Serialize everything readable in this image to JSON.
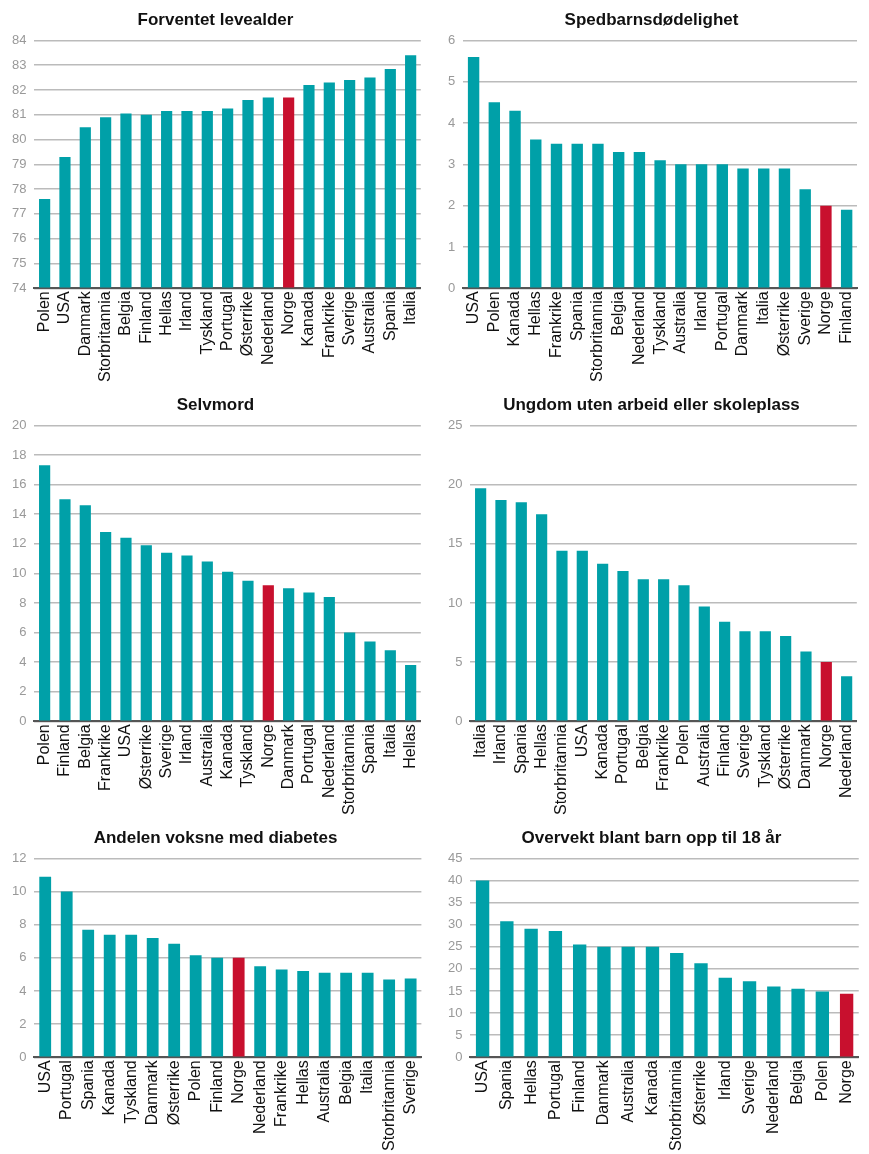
{
  "chart_data": [
    {
      "type": "bar",
      "title": "Forventet levealder",
      "categories": [
        "Polen",
        "USA",
        "Danmark",
        "Storbritannia",
        "Belgia",
        "Finland",
        "Hellas",
        "Irland",
        "Tyskland",
        "Portugal",
        "Østerrike",
        "Nederland",
        "Norge",
        "Kanada",
        "Frankrike",
        "Sverige",
        "Australia",
        "Spania",
        "Italia"
      ],
      "values": [
        77.6,
        79.3,
        80.5,
        80.9,
        81.05,
        81.0,
        81.15,
        81.15,
        81.15,
        81.25,
        81.6,
        81.7,
        81.7,
        82.2,
        82.3,
        82.4,
        82.5,
        82.85,
        83.4
      ],
      "colors": [
        "#00a0a8",
        "#00a0a8",
        "#00a0a8",
        "#00a0a8",
        "#00a0a8",
        "#00a0a8",
        "#00a0a8",
        "#00a0a8",
        "#00a0a8",
        "#00a0a8",
        "#00a0a8",
        "#00a0a8",
        "#c8102e",
        "#00a0a8",
        "#00a0a8",
        "#00a0a8",
        "#00a0a8",
        "#00a0a8",
        "#00a0a8"
      ],
      "ylim": [
        74,
        84
      ],
      "yticks": [
        74,
        75,
        76,
        77,
        78,
        79,
        80,
        81,
        82,
        83,
        84
      ],
      "grid": "y"
    },
    {
      "type": "bar",
      "title": "Spedbarnsdødelighet",
      "categories": [
        "USA",
        "Polen",
        "Kanada",
        "Hellas",
        "Frankrike",
        "Spania",
        "Storbritannia",
        "Belgia",
        "Nederland",
        "Tyskland",
        "Australia",
        "Irland",
        "Portugal",
        "Danmark",
        "Italia",
        "Østerrike",
        "Sverige",
        "Norge",
        "Finland"
      ],
      "values": [
        5.6,
        4.5,
        4.3,
        3.6,
        3.5,
        3.5,
        3.5,
        3.3,
        3.3,
        3.1,
        3.0,
        3.0,
        3.0,
        2.9,
        2.9,
        2.9,
        2.4,
        2.0,
        1.9
      ],
      "colors": [
        "#00a0a8",
        "#00a0a8",
        "#00a0a8",
        "#00a0a8",
        "#00a0a8",
        "#00a0a8",
        "#00a0a8",
        "#00a0a8",
        "#00a0a8",
        "#00a0a8",
        "#00a0a8",
        "#00a0a8",
        "#00a0a8",
        "#00a0a8",
        "#00a0a8",
        "#00a0a8",
        "#00a0a8",
        "#c8102e",
        "#00a0a8"
      ],
      "ylim": [
        0,
        6
      ],
      "yticks": [
        0,
        1,
        2,
        3,
        4,
        5,
        6
      ],
      "grid": "y"
    },
    {
      "type": "bar",
      "title": "Selvmord",
      "categories": [
        "Polen",
        "Finland",
        "Belgia",
        "Frankrike",
        "USA",
        "Østerrike",
        "Sverige",
        "Irland",
        "Australia",
        "Kanada",
        "Tyskland",
        "Norge",
        "Danmark",
        "Portugal",
        "Nederland",
        "Storbritannia",
        "Spania",
        "Italia",
        "Hellas"
      ],
      "values": [
        17.3,
        15.0,
        14.6,
        12.8,
        12.4,
        11.9,
        11.4,
        11.2,
        10.8,
        10.1,
        9.5,
        9.2,
        9.0,
        8.7,
        8.4,
        6.0,
        5.4,
        4.8,
        3.8
      ],
      "colors": [
        "#00a0a8",
        "#00a0a8",
        "#00a0a8",
        "#00a0a8",
        "#00a0a8",
        "#00a0a8",
        "#00a0a8",
        "#00a0a8",
        "#00a0a8",
        "#00a0a8",
        "#00a0a8",
        "#c8102e",
        "#00a0a8",
        "#00a0a8",
        "#00a0a8",
        "#00a0a8",
        "#00a0a8",
        "#00a0a8",
        "#00a0a8"
      ],
      "ylim": [
        0,
        20
      ],
      "yticks": [
        0,
        2,
        4,
        6,
        8,
        10,
        12,
        14,
        16,
        18,
        20
      ],
      "grid": "y"
    },
    {
      "type": "bar",
      "title": "Ungdom uten arbeid eller skoleplass",
      "categories": [
        "Italia",
        "Irland",
        "Spania",
        "Hellas",
        "Storbritannia",
        "USA",
        "Kanada",
        "Portugal",
        "Belgia",
        "Frankrike",
        "Polen",
        "Australia",
        "Finland",
        "Sverige",
        "Tyskland",
        "Østerrike",
        "Danmark",
        "Norge",
        "Nederland"
      ],
      "values": [
        19.7,
        18.7,
        18.5,
        17.5,
        14.4,
        14.4,
        13.3,
        12.7,
        12.0,
        12.0,
        11.5,
        9.7,
        8.4,
        7.6,
        7.6,
        7.2,
        5.9,
        5.0,
        3.8
      ],
      "colors": [
        "#00a0a8",
        "#00a0a8",
        "#00a0a8",
        "#00a0a8",
        "#00a0a8",
        "#00a0a8",
        "#00a0a8",
        "#00a0a8",
        "#00a0a8",
        "#00a0a8",
        "#00a0a8",
        "#00a0a8",
        "#00a0a8",
        "#00a0a8",
        "#00a0a8",
        "#00a0a8",
        "#00a0a8",
        "#c8102e",
        "#00a0a8"
      ],
      "ylim": [
        0,
        25
      ],
      "yticks": [
        0,
        5,
        10,
        15,
        20,
        25
      ],
      "grid": "y"
    },
    {
      "type": "bar",
      "title": "Andelen voksne med diabetes",
      "categories": [
        "USA",
        "Portugal",
        "Spania",
        "Kanada",
        "Tyskland",
        "Danmark",
        "Østerrike",
        "Polen",
        "Finland",
        "Norge",
        "Nederland",
        "Frankrike",
        "Hellas",
        "Australia",
        "Belgia",
        "Italia",
        "Storbritannia",
        "Sverige"
      ],
      "values": [
        10.9,
        10.0,
        7.7,
        7.4,
        7.4,
        7.2,
        6.85,
        6.15,
        6.0,
        6.0,
        5.5,
        5.3,
        5.2,
        5.1,
        5.1,
        5.1,
        4.7,
        4.75
      ],
      "colors": [
        "#00a0a8",
        "#00a0a8",
        "#00a0a8",
        "#00a0a8",
        "#00a0a8",
        "#00a0a8",
        "#00a0a8",
        "#00a0a8",
        "#00a0a8",
        "#c8102e",
        "#00a0a8",
        "#00a0a8",
        "#00a0a8",
        "#00a0a8",
        "#00a0a8",
        "#00a0a8",
        "#00a0a8",
        "#00a0a8"
      ],
      "ylim": [
        0,
        12
      ],
      "yticks": [
        0,
        2,
        4,
        6,
        8,
        10,
        12
      ],
      "grid": "y"
    },
    {
      "type": "bar",
      "title": "Overvekt blant barn opp til 18 år",
      "categories": [
        "USA",
        "Spania",
        "Hellas",
        "Portugal",
        "Finland",
        "Danmark",
        "Australia",
        "Kanada",
        "Storbritannia",
        "Østerrike",
        "Irland",
        "Sverige",
        "Nederland",
        "Belgia",
        "Polen",
        "Norge"
      ],
      "values": [
        40.0,
        30.8,
        29.1,
        28.6,
        25.5,
        25.0,
        25.0,
        25.0,
        23.6,
        21.3,
        18.0,
        17.2,
        16.0,
        15.5,
        14.9,
        14.4
      ],
      "colors": [
        "#00a0a8",
        "#00a0a8",
        "#00a0a8",
        "#00a0a8",
        "#00a0a8",
        "#00a0a8",
        "#00a0a8",
        "#00a0a8",
        "#00a0a8",
        "#00a0a8",
        "#00a0a8",
        "#00a0a8",
        "#00a0a8",
        "#00a0a8",
        "#00a0a8",
        "#c8102e"
      ],
      "ylim": [
        0,
        45
      ],
      "yticks": [
        0,
        5,
        10,
        15,
        20,
        25,
        30,
        35,
        40,
        45
      ],
      "grid": "y"
    }
  ]
}
